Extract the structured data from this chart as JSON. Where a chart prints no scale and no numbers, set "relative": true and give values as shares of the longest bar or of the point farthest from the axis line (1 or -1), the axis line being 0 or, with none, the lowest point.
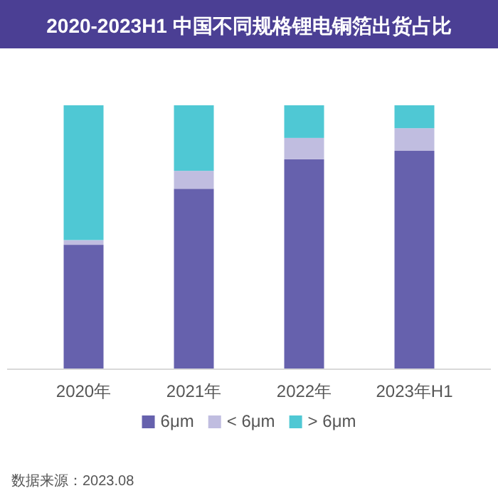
{
  "chart_data": {
    "type": "bar",
    "title": "2020-2023H1 中国不同规格锂电铜箔出货占比",
    "categories": [
      "2020年",
      "2021年",
      "2022年",
      "2023年H1"
    ],
    "stacked": true,
    "relative": true,
    "legend": "bottom",
    "series": [
      {
        "name": "6μm",
        "color": "#6661ad",
        "values": [
          0.47,
          0.683,
          0.795,
          0.827
        ]
      },
      {
        "name": "< 6μm",
        "color": "#c0bde0",
        "values": [
          0.018,
          0.068,
          0.081,
          0.086
        ]
      },
      {
        "name": "> 6μm",
        "color": "#4fc8d4",
        "values": [
          0.512,
          0.249,
          0.124,
          0.087
        ]
      }
    ],
    "annotations": [
      "数据来源：2023.08"
    ]
  }
}
